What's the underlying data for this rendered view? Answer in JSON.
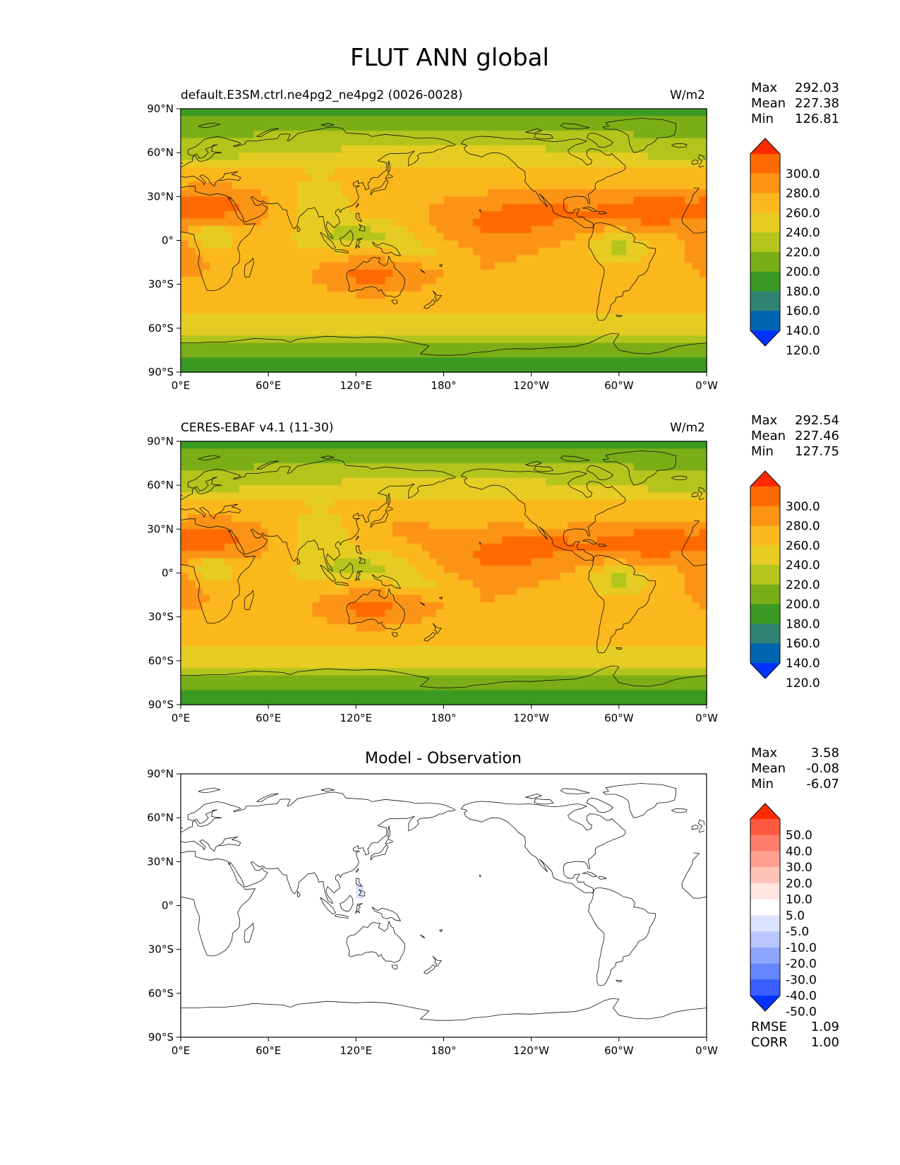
{
  "figure": {
    "title": "FLUT ANN global",
    "x_ticks": [
      "0°E",
      "60°E",
      "120°E",
      "180°",
      "120°W",
      "60°W",
      "0°W"
    ],
    "y_ticks": [
      "90°N",
      "60°N",
      "30°N",
      "0°",
      "30°S",
      "60°S",
      "90°S"
    ]
  },
  "chart_data": [
    {
      "type": "heatmap",
      "subtitle_left": "default.E3SM.ctrl.ne4pg2_ne4pg2 (0026-0028)",
      "subtitle_right": "W/m2",
      "stats": [
        {
          "label": "Max",
          "value": "292.03"
        },
        {
          "label": "Mean",
          "value": "227.38"
        },
        {
          "label": "Min",
          "value": "126.81"
        }
      ],
      "xlim": [
        0,
        360
      ],
      "ylim": [
        -90,
        90
      ],
      "colorbar": {
        "levels": [
          "300.0",
          "280.0",
          "260.0",
          "240.0",
          "220.0",
          "200.0",
          "180.0",
          "160.0",
          "140.0",
          "120.0"
        ],
        "colors": [
          "#ff2a00",
          "#ff6a00",
          "#fb9412",
          "#fbb81e",
          "#e6cc22",
          "#b3c41c",
          "#7aae18",
          "#3a9a24",
          "#2f8572",
          "#0065b0",
          "#0033ff"
        ]
      },
      "field_shift": 0
    },
    {
      "type": "heatmap",
      "subtitle_left": "CERES-EBAF v4.1 (11-30)",
      "subtitle_right": "W/m2",
      "stats": [
        {
          "label": "Max",
          "value": "292.54"
        },
        {
          "label": "Mean",
          "value": "227.46"
        },
        {
          "label": "Min",
          "value": "127.75"
        }
      ],
      "xlim": [
        0,
        360
      ],
      "ylim": [
        -90,
        90
      ],
      "colorbar": {
        "levels": [
          "300.0",
          "280.0",
          "260.0",
          "240.0",
          "220.0",
          "200.0",
          "180.0",
          "160.0",
          "140.0",
          "120.0"
        ],
        "colors": [
          "#ff2a00",
          "#ff6a00",
          "#fb9412",
          "#fbb81e",
          "#e6cc22",
          "#b3c41c",
          "#7aae18",
          "#3a9a24",
          "#2f8572",
          "#0065b0",
          "#0033ff"
        ]
      },
      "field_shift": 1
    },
    {
      "type": "heatmap",
      "subtitle_center": "Model - Observation",
      "stats": [
        {
          "label": "Max",
          "value": "3.58"
        },
        {
          "label": "Mean",
          "value": "-0.08"
        },
        {
          "label": "Min",
          "value": "-6.07"
        }
      ],
      "xlim": [
        0,
        360
      ],
      "ylim": [
        -90,
        90
      ],
      "colorbar": {
        "levels": [
          "50.0",
          "40.0",
          "30.0",
          "20.0",
          "10.0",
          "5.0",
          "-5.0",
          "-10.0",
          "-20.0",
          "-30.0",
          "-40.0",
          "-50.0"
        ],
        "colors": [
          "#ff2a00",
          "#ff5a40",
          "#ff7d6a",
          "#ffa090",
          "#ffc4b8",
          "#ffe6e0",
          "#ffffff",
          "#dde3ff",
          "#b9c6ff",
          "#8fa6ff",
          "#6486ff",
          "#3a5dff",
          "#0033ff"
        ]
      },
      "bottom_stats": [
        {
          "label": "RMSE",
          "value": "1.09"
        },
        {
          "label": "CORR",
          "value": "1.00"
        }
      ]
    }
  ]
}
